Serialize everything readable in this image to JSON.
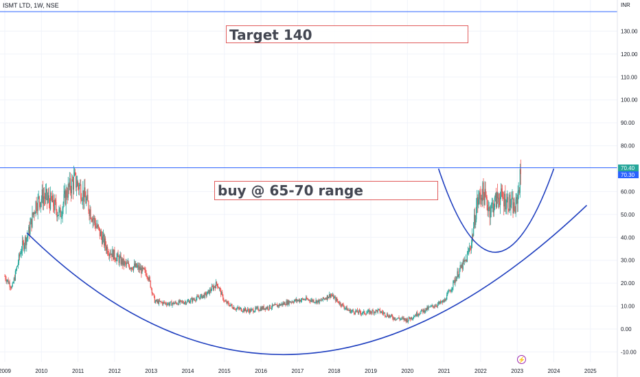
{
  "header": {
    "symbol_line": "ISMT LTD, 1W, NSE",
    "currency": "INR"
  },
  "annotations": {
    "target": "Target 140",
    "buy": "buy @ 65-70 range"
  },
  "price_labels": {
    "upper": "70.40",
    "lower": "70.30"
  },
  "event_icon": "lightning-icon",
  "colors": {
    "up": "#26a69a",
    "down": "#ef5350",
    "line": "#2962ff",
    "curve": "#1f3fbf",
    "annotation_border": "#e05a5a",
    "grid": "#f0f3fa"
  },
  "chart_data": {
    "type": "candlestick",
    "title": "ISMT LTD, 1W, NSE",
    "ylabel": "INR",
    "ylim": [
      -12,
      143
    ],
    "xlim": [
      2009.0,
      2026.0
    ],
    "y_ticks": [
      -10,
      0,
      10,
      20,
      30,
      40,
      50,
      60,
      70,
      80,
      90,
      100,
      110,
      120,
      130
    ],
    "x_ticks": [
      "2009",
      "2010",
      "2011",
      "2012",
      "2013",
      "2014",
      "2015",
      "2016",
      "2017",
      "2018",
      "2019",
      "2020",
      "2021",
      "2022",
      "2023",
      "2024",
      "2025"
    ],
    "grid": true,
    "horizontal_lines": [
      138.5,
      70.4
    ],
    "price_path": [
      [
        2009.0,
        23
      ],
      [
        2009.2,
        18
      ],
      [
        2009.45,
        35
      ],
      [
        2009.65,
        42
      ],
      [
        2009.85,
        55
      ],
      [
        2010.05,
        58
      ],
      [
        2010.3,
        55
      ],
      [
        2010.5,
        50
      ],
      [
        2010.7,
        60
      ],
      [
        2010.9,
        65
      ],
      [
        2011.05,
        62
      ],
      [
        2011.25,
        55
      ],
      [
        2011.5,
        45
      ],
      [
        2011.8,
        35
      ],
      [
        2012.0,
        32
      ],
      [
        2012.3,
        28
      ],
      [
        2012.6,
        27
      ],
      [
        2012.9,
        24
      ],
      [
        2013.1,
        12
      ],
      [
        2013.5,
        11
      ],
      [
        2014.0,
        12
      ],
      [
        2014.5,
        15
      ],
      [
        2014.8,
        20
      ],
      [
        2015.0,
        12
      ],
      [
        2015.3,
        9
      ],
      [
        2015.7,
        8
      ],
      [
        2016.0,
        9
      ],
      [
        2016.4,
        10
      ],
      [
        2016.8,
        12
      ],
      [
        2017.2,
        13
      ],
      [
        2017.6,
        12
      ],
      [
        2017.9,
        15
      ],
      [
        2018.1,
        12
      ],
      [
        2018.4,
        8
      ],
      [
        2018.8,
        7
      ],
      [
        2019.2,
        8
      ],
      [
        2019.6,
        5
      ],
      [
        2020.0,
        4
      ],
      [
        2020.3,
        7
      ],
      [
        2020.7,
        10
      ],
      [
        2021.0,
        12
      ],
      [
        2021.2,
        18
      ],
      [
        2021.4,
        25
      ],
      [
        2021.6,
        30
      ],
      [
        2021.75,
        38
      ],
      [
        2021.9,
        55
      ],
      [
        2022.05,
        60
      ],
      [
        2022.25,
        52
      ],
      [
        2022.5,
        58
      ],
      [
        2022.8,
        55
      ],
      [
        2022.95,
        52
      ],
      [
        2023.1,
        68
      ]
    ],
    "overlays": [
      {
        "type": "arc",
        "from": [
          2009.6,
          42
        ],
        "bottom": [
          2017.0,
          -11
        ],
        "to": [
          2024.9,
          54
        ]
      },
      {
        "type": "arc",
        "from": [
          2020.85,
          70
        ],
        "bottom": [
          2022.4,
          33.5
        ],
        "to": [
          2024.0,
          70
        ]
      }
    ]
  }
}
